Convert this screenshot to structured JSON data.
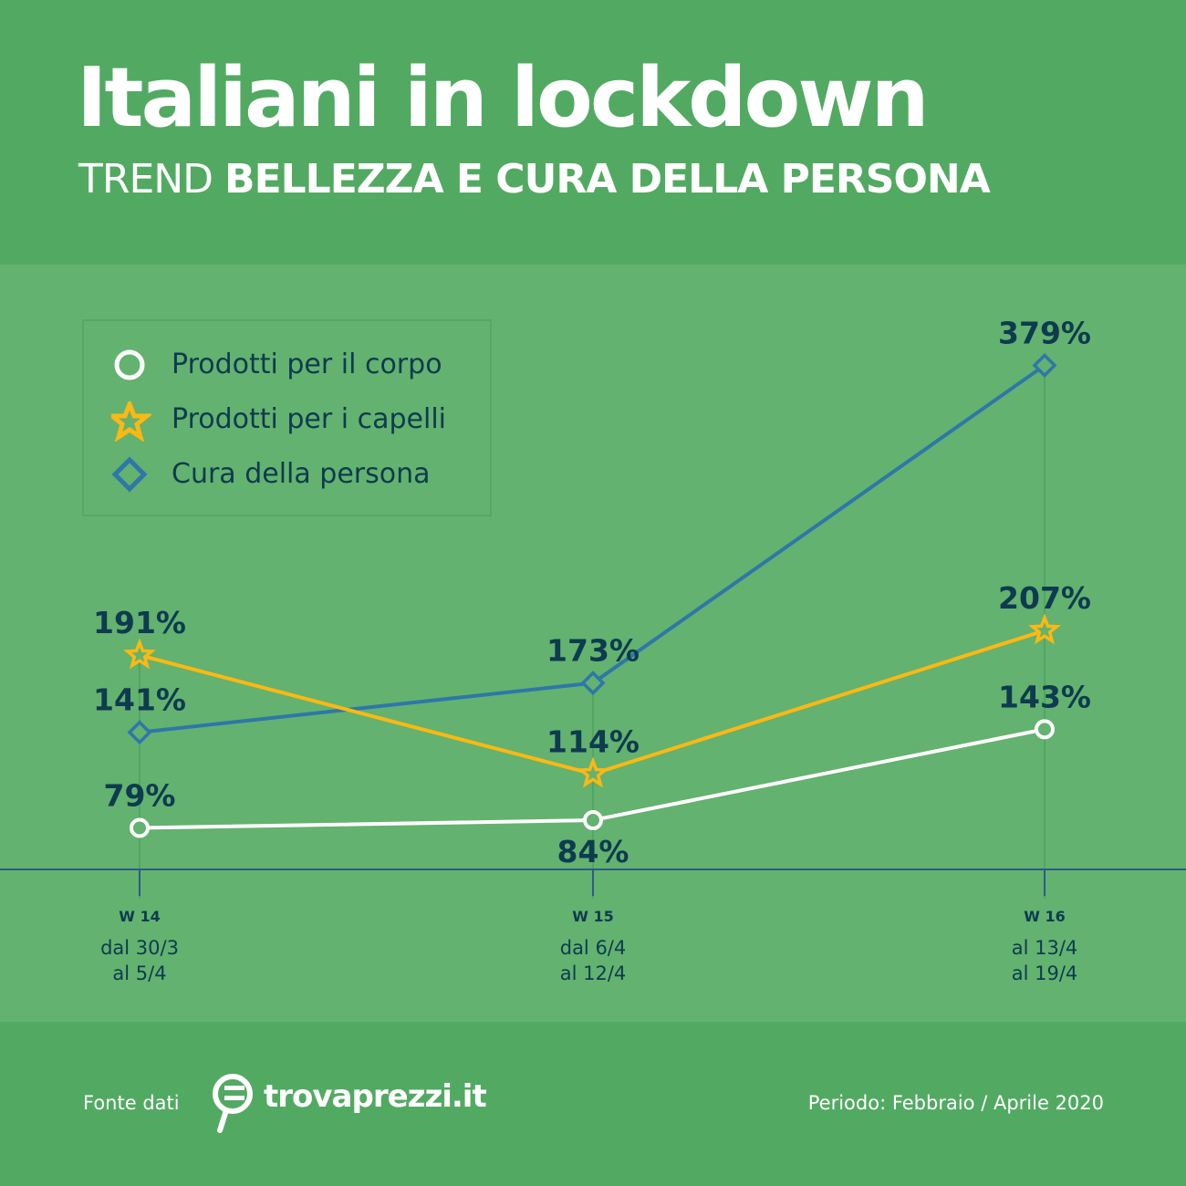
{
  "header": {
    "title": "Italiani in lockdown",
    "subtitle_light": "TREND ",
    "subtitle_bold": "BELLEZZA E CURA DELLA PERSONA"
  },
  "footer": {
    "source_label": "Fonte dati",
    "logo_text": "trovaprezzi.it",
    "period": "Periodo: Febbraio / Aprile 2020"
  },
  "colors": {
    "header_bg": "#52aa62",
    "chart_bg": "#63b26f",
    "text": "#0d3b4f",
    "corpo": "#ffffff",
    "capelli": "#fdb813",
    "cura": "#2e77a8"
  },
  "chart_data": {
    "type": "line",
    "categories": [
      "W 14",
      "W 15",
      "W 16"
    ],
    "category_dates": [
      [
        "dal 30/3",
        "al 5/4"
      ],
      [
        "dal 6/4",
        "al 12/4"
      ],
      [
        "al 13/4",
        "al 19/4"
      ]
    ],
    "unit": "%",
    "legend_position": "top-left",
    "grid": false,
    "series": [
      {
        "name": "Prodotti per il corpo",
        "marker": "circle",
        "color": "#ffffff",
        "values": [
          79,
          84,
          143
        ],
        "labels": [
          "79%",
          "84%",
          "143%"
        ]
      },
      {
        "name": "Prodotti per i capelli",
        "marker": "star",
        "color": "#fdb813",
        "values": [
          191,
          114,
          207
        ],
        "labels": [
          "191%",
          "114%",
          "207%"
        ]
      },
      {
        "name": "Cura della persona",
        "marker": "diamond",
        "color": "#2e77a8",
        "values": [
          141,
          173,
          379
        ],
        "labels": [
          "141%",
          "173%",
          "379%"
        ]
      }
    ]
  }
}
